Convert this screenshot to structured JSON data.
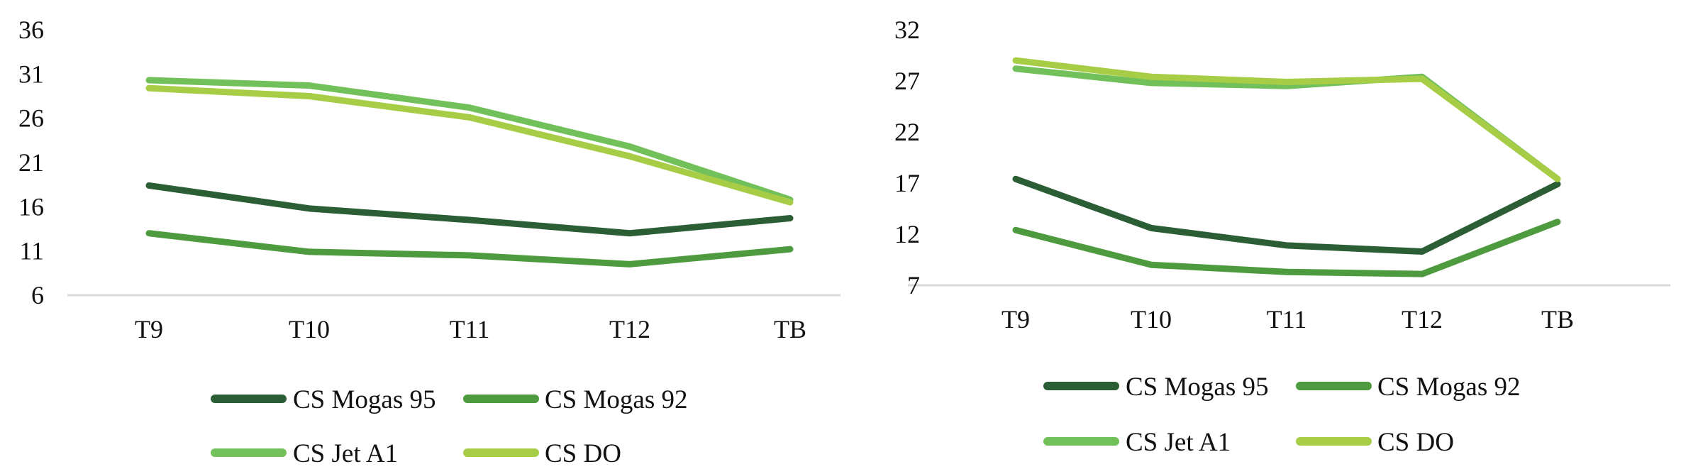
{
  "chart_data": [
    {
      "type": "line",
      "title": "",
      "xlabel": "",
      "ylabel": "",
      "categories": [
        "T9",
        "T10",
        "T11",
        "T12",
        "TB"
      ],
      "yticks": [
        6,
        11,
        16,
        21,
        26,
        31,
        36
      ],
      "ylim": [
        6,
        36
      ],
      "grid": false,
      "legend": "bottom",
      "series": [
        {
          "name": "CS Mogas 95",
          "color": "#2b5e34",
          "values": [
            18.4,
            15.8,
            14.5,
            13.0,
            14.7
          ]
        },
        {
          "name": "CS Mogas 92",
          "color": "#4e9a3e",
          "values": [
            13.0,
            10.9,
            10.5,
            9.5,
            11.2
          ]
        },
        {
          "name": "CS Jet A1",
          "color": "#72c05a",
          "values": [
            30.3,
            29.7,
            27.2,
            22.8,
            16.8
          ]
        },
        {
          "name": "CS DO",
          "color": "#a6cd45",
          "values": [
            29.4,
            28.5,
            26.1,
            21.7,
            16.5
          ]
        }
      ]
    },
    {
      "type": "line",
      "title": "",
      "xlabel": "",
      "ylabel": "",
      "categories": [
        "T9",
        "T10",
        "T11",
        "T12",
        "TB"
      ],
      "yticks": [
        7,
        12,
        17,
        22,
        27,
        32
      ],
      "ylim": [
        7,
        32
      ],
      "grid": false,
      "legend": "bottom",
      "series": [
        {
          "name": "CS Mogas 95",
          "color": "#2b5e34",
          "values": [
            17.4,
            12.6,
            10.9,
            10.3,
            16.9
          ]
        },
        {
          "name": "CS Mogas 92",
          "color": "#4e9a3e",
          "values": [
            12.4,
            9.0,
            8.3,
            8.1,
            13.2
          ]
        },
        {
          "name": "CS Jet A1",
          "color": "#72c05a",
          "values": [
            28.2,
            26.8,
            26.5,
            27.4,
            17.4
          ]
        },
        {
          "name": "CS DO",
          "color": "#a6cd45",
          "values": [
            29.0,
            27.4,
            26.9,
            27.2,
            17.4
          ]
        }
      ]
    }
  ]
}
